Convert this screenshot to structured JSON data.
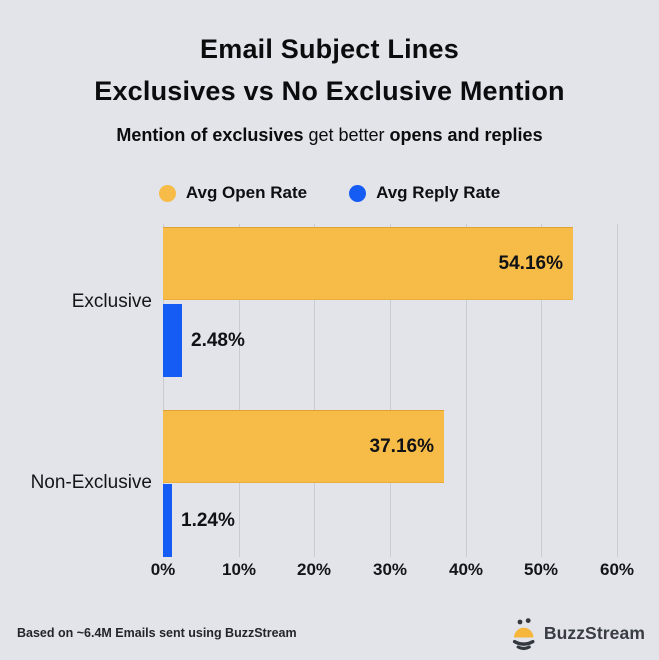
{
  "title": {
    "line1": "Email Subject Lines",
    "line2": "Exclusives vs No Exclusive Mention"
  },
  "subtitle": {
    "bold1": "Mention of exclusives",
    "regular": " get better ",
    "bold2": "opens and replies"
  },
  "colors": {
    "background": "#e2e4e9",
    "grid": "#c9cdd3",
    "open_rate": "#f7bc47",
    "reply_rate": "#155cf4",
    "logo_dark": "#33383f",
    "logo_yellow": "#f6b63c"
  },
  "chart_data": {
    "type": "bar",
    "orientation": "horizontal",
    "title": "Email Subject Lines Exclusives vs No Exclusive Mention",
    "subtitle": "Mention of exclusives get better opens and replies",
    "categories": [
      "Exclusive",
      "Non-Exclusive"
    ],
    "series": [
      {
        "name": "Avg Open Rate",
        "color": "#f7bc47",
        "values": [
          54.16,
          37.16
        ],
        "labels": [
          "54.16%",
          "37.16%"
        ]
      },
      {
        "name": "Avg Reply Rate",
        "color": "#155cf4",
        "values": [
          2.48,
          1.24
        ],
        "labels": [
          "2.48%",
          "1.24%"
        ]
      }
    ],
    "x_axis": {
      "ticks": [
        "0%",
        "10%",
        "20%",
        "30%",
        "40%",
        "50%",
        "60%"
      ],
      "min": 0,
      "max": 60,
      "unit": "%"
    },
    "grid": true,
    "legend_position": "top"
  },
  "footer": {
    "note": "Based on ~6.4M Emails sent using BuzzStream",
    "brand": "BuzzStream"
  }
}
